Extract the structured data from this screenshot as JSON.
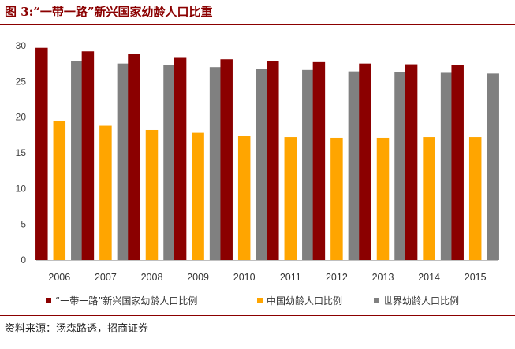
{
  "figure": {
    "title": "图 3:“一带一路”新兴国家幼龄人口比重",
    "source": "资料来源：汤森路透，招商证券"
  },
  "colors": {
    "accent": "#8b0000",
    "series1": "#8b0000",
    "series2": "#ffa500",
    "series3": "#808080",
    "axis": "#bfbfbf"
  },
  "chart_data": {
    "type": "bar",
    "title": "“一带一路”新兴国家幼龄人口比重",
    "xlabel": "",
    "ylabel": "",
    "ylim": [
      0,
      30
    ],
    "yticks": [
      0,
      5,
      10,
      15,
      20,
      25,
      30
    ],
    "grid": false,
    "legend": "bottom",
    "categories": [
      "2006",
      "2007",
      "2008",
      "2009",
      "2010",
      "2011",
      "2012",
      "2013",
      "2014",
      "2015"
    ],
    "series": [
      {
        "name": "“一带一路”新兴国家幼龄人口比例",
        "color": "#8b0000",
        "values": [
          29.7,
          29.2,
          28.8,
          28.4,
          28.1,
          27.9,
          27.7,
          27.5,
          27.4,
          27.3
        ]
      },
      {
        "name": "中国幼龄人口比例",
        "color": "#ffa500",
        "values": [
          19.5,
          18.8,
          18.2,
          17.8,
          17.4,
          17.2,
          17.1,
          17.1,
          17.2,
          17.2
        ]
      },
      {
        "name": "世界幼龄人口比例",
        "color": "#808080",
        "values": [
          27.8,
          27.5,
          27.3,
          27.0,
          26.8,
          26.6,
          26.4,
          26.3,
          26.2,
          26.1
        ]
      }
    ]
  }
}
